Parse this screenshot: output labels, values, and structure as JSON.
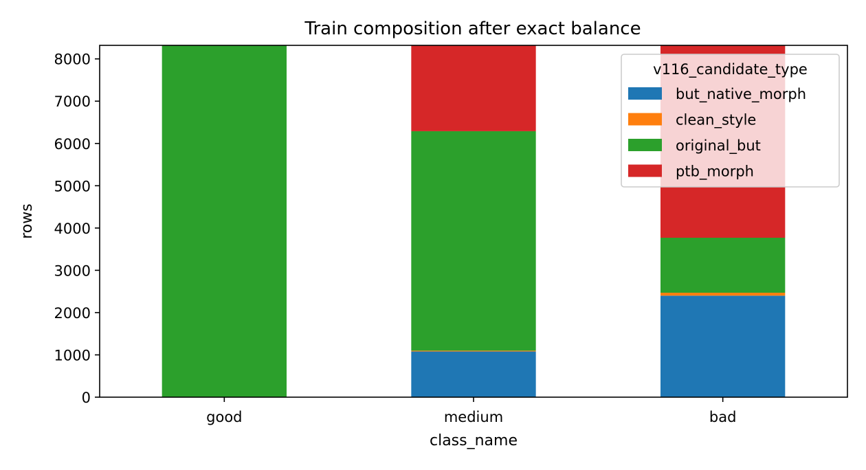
{
  "chart_data": {
    "type": "bar",
    "stacked": true,
    "title": "Train composition after exact balance",
    "xlabel": "class_name",
    "ylabel": "rows",
    "categories": [
      "good",
      "medium",
      "bad"
    ],
    "yticks": [
      0,
      1000,
      2000,
      3000,
      4000,
      5000,
      6000,
      7000,
      8000
    ],
    "ylim": [
      0,
      8320
    ],
    "grid": false,
    "legend": {
      "title": "v116_candidate_type",
      "placement": "top-right"
    },
    "series": [
      {
        "name": "but_native_morph",
        "color": "#1f77b4",
        "values": [
          0,
          1080,
          2400
        ]
      },
      {
        "name": "clean_style",
        "color": "#ff7f0e",
        "values": [
          0,
          20,
          70
        ]
      },
      {
        "name": "original_but",
        "color": "#2ca02c",
        "values": [
          8320,
          5190,
          1300
        ]
      },
      {
        "name": "ptb_morph",
        "color": "#d62728",
        "values": [
          0,
          2030,
          4550
        ]
      }
    ]
  }
}
